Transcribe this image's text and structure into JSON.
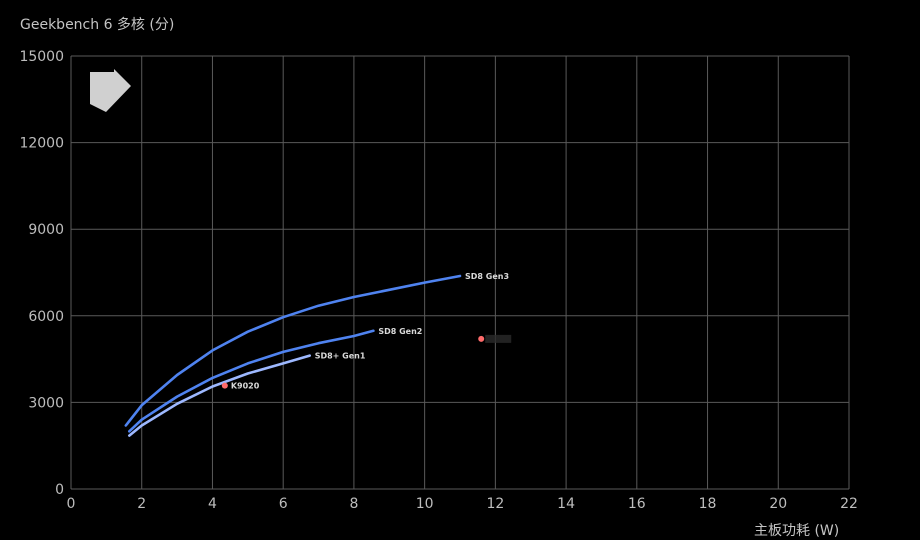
{
  "chart_data": {
    "type": "line",
    "ylabel": "Geekbench 6 多核 (分)",
    "xlabel": "主板功耗 (W)",
    "xlim": [
      0,
      22
    ],
    "ylim": [
      0,
      15000
    ],
    "xticks": [
      0,
      2,
      4,
      6,
      8,
      10,
      12,
      14,
      16,
      18,
      20,
      22
    ],
    "yticks": [
      0,
      3000,
      6000,
      9000,
      12000,
      15000
    ],
    "grid": true,
    "series": [
      {
        "name": "SD8 Gen3",
        "color": "#4f83f0",
        "points": [
          [
            1.55,
            2200
          ],
          [
            2,
            2900
          ],
          [
            3,
            3950
          ],
          [
            4,
            4800
          ],
          [
            5,
            5450
          ],
          [
            6,
            5950
          ],
          [
            7,
            6350
          ],
          [
            8,
            6650
          ],
          [
            9,
            6900
          ],
          [
            10,
            7150
          ],
          [
            11,
            7380
          ]
        ]
      },
      {
        "name": "SD8 Gen2",
        "color": "#4f83f0",
        "points": [
          [
            1.65,
            2000
          ],
          [
            2,
            2400
          ],
          [
            3,
            3200
          ],
          [
            4,
            3850
          ],
          [
            5,
            4350
          ],
          [
            6,
            4750
          ],
          [
            7,
            5050
          ],
          [
            8,
            5300
          ],
          [
            8.55,
            5480
          ]
        ]
      },
      {
        "name": "SD8+ Gen1",
        "color": "#9db8ff",
        "points": [
          [
            1.65,
            1850
          ],
          [
            2,
            2200
          ],
          [
            3,
            2950
          ],
          [
            4,
            3550
          ],
          [
            5,
            4000
          ],
          [
            6,
            4350
          ],
          [
            6.75,
            4620
          ]
        ]
      }
    ],
    "points": [
      {
        "name": "K9020",
        "x": 4.35,
        "y": 3580,
        "color": "#ff6b6b",
        "label_visible": true
      },
      {
        "name": "",
        "x": 11.6,
        "y": 5200,
        "color": "#ff6b6b",
        "label_visible": false
      }
    ]
  },
  "logo": {
    "name": "arrow-logo-icon"
  }
}
